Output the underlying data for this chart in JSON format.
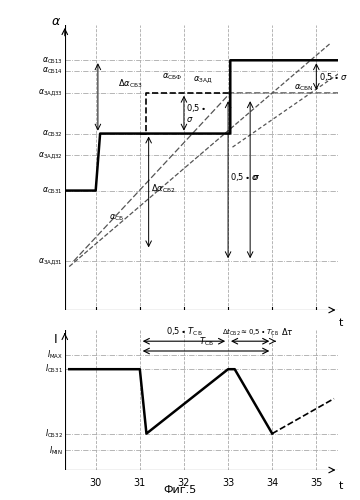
{
  "t_ticks": [
    30,
    31,
    32,
    33,
    34,
    35
  ],
  "top_ylabel": "α",
  "bot_ylabel": "I",
  "xlabel": "t",
  "figcaption": "Фиг.5",
  "alpha_levels": {
    "alpha_CB13": 0.92,
    "alpha_CB14": 0.88,
    "alpha_ZAD33": 0.8,
    "alpha_CB32": 0.65,
    "alpha_ZAD32": 0.57,
    "alpha_CB31": 0.44,
    "alpha_ZAD31": 0.18
  },
  "I_levels": {
    "I_MAX": 0.82,
    "I_CB31": 0.72,
    "I_CB32": 0.26,
    "I_MIN": 0.14
  },
  "bg_color": "#ffffff",
  "line_color": "#000000",
  "dash_color": "#555555",
  "grid_color": "#aaaaaa"
}
